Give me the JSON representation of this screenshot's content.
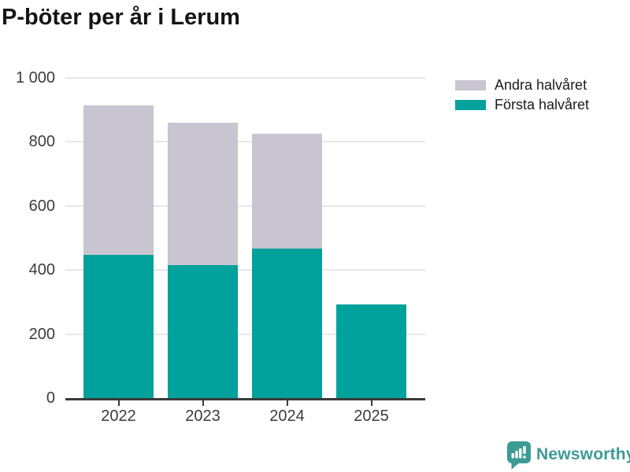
{
  "chart_data": {
    "type": "bar",
    "stacked": true,
    "title": "P-böter per år i Lerum",
    "categories": [
      "2022",
      "2023",
      "2024",
      "2025"
    ],
    "series": [
      {
        "name": "Första halvåret",
        "color": "#00a29b",
        "values": [
          447,
          415,
          468,
          293
        ]
      },
      {
        "name": "Andra halvåret",
        "color": "#c8c5d0",
        "values": [
          466,
          444,
          357,
          0
        ]
      }
    ],
    "totals": [
      913,
      859,
      825,
      293
    ],
    "xlabel": "",
    "ylabel": "",
    "ylim": [
      0,
      1000
    ],
    "yticks": [
      0,
      200,
      400,
      600,
      800,
      1000
    ],
    "ytick_labels": [
      "0",
      "200",
      "400",
      "600",
      "800",
      "1 000"
    ],
    "grid": true,
    "legend": {
      "position": "top-right",
      "entries": [
        {
          "label": "Andra halvåret",
          "color": "#c8c5d0"
        },
        {
          "label": "Första halvåret",
          "color": "#00a29b"
        }
      ]
    },
    "colors": {
      "axis": "#3a3a3a",
      "gridline": "#e8e8eb",
      "tick_label": "#3c3c3c",
      "title": "#151515"
    }
  },
  "branding": {
    "logo_text": "Newsworthy",
    "logo_color": "#3d9b95",
    "logo_icon": "bar-chart-speech-bubble-icon"
  }
}
